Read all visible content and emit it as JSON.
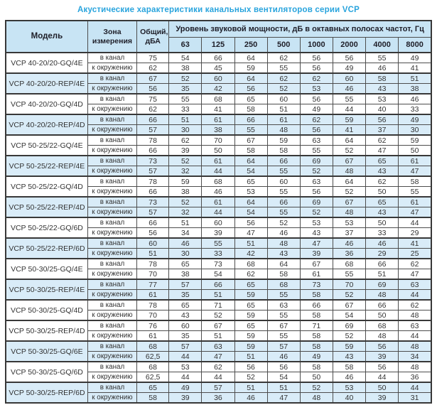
{
  "title": "Акустические характеристики канальных вентиляторов  серии VCP",
  "colors": {
    "title_blue": "#29a4dd",
    "header_bg": "#c8e4f4",
    "highlight_row_bg": "#d9ecf8",
    "border": "#4d4d4d"
  },
  "table": {
    "headers": {
      "model": "Модель",
      "zone": "Зона измерения",
      "total": "Общий, дБА",
      "spl_group": "Уровень звуковой мощности, дБ в октавных полосах частот, Гц",
      "frequencies": [
        "63",
        "125",
        "250",
        "500",
        "1000",
        "2000",
        "4000",
        "8000"
      ]
    },
    "models": [
      {
        "name": "VCP 40-20/20-GQ/4E",
        "highlight": false,
        "rows": [
          {
            "zone": "в канал",
            "total": "75",
            "levels": [
              "54",
              "66",
              "64",
              "62",
              "56",
              "56",
              "55",
              "49"
            ]
          },
          {
            "zone": "к окружению",
            "total": "62",
            "levels": [
              "38",
              "45",
              "59",
              "55",
              "56",
              "49",
              "46",
              "41"
            ]
          }
        ]
      },
      {
        "name": "VCP 40-20/20-REP/4E",
        "highlight": true,
        "rows": [
          {
            "zone": "в канал",
            "total": "67",
            "levels": [
              "52",
              "60",
              "64",
              "62",
              "62",
              "60",
              "58",
              "51"
            ]
          },
          {
            "zone": "к окружению",
            "total": "56",
            "levels": [
              "35",
              "42",
              "56",
              "52",
              "53",
              "46",
              "43",
              "38"
            ]
          }
        ]
      },
      {
        "name": "VCP 40-20/20-GQ/4D",
        "highlight": false,
        "rows": [
          {
            "zone": "в канал",
            "total": "75",
            "levels": [
              "55",
              "68",
              "65",
              "60",
              "56",
              "55",
              "53",
              "46"
            ]
          },
          {
            "zone": "к окружению",
            "total": "62",
            "levels": [
              "33",
              "41",
              "58",
              "51",
              "49",
              "44",
              "40",
              "33"
            ]
          }
        ]
      },
      {
        "name": "VCP 40-20/20-REP/4D",
        "highlight": true,
        "rows": [
          {
            "zone": "в канал",
            "total": "66",
            "levels": [
              "51",
              "61",
              "66",
              "61",
              "62",
              "59",
              "56",
              "49"
            ]
          },
          {
            "zone": "к окружению",
            "total": "57",
            "levels": [
              "30",
              "38",
              "55",
              "48",
              "56",
              "41",
              "37",
              "30"
            ]
          }
        ]
      },
      {
        "name": "VCP 50-25/22-GQ/4E",
        "highlight": false,
        "rows": [
          {
            "zone": "в канал",
            "total": "78",
            "levels": [
              "62",
              "70",
              "67",
              "59",
              "63",
              "64",
              "62",
              "59"
            ]
          },
          {
            "zone": "к окружению",
            "total": "66",
            "levels": [
              "39",
              "50",
              "58",
              "58",
              "55",
              "52",
              "47",
              "50"
            ]
          }
        ]
      },
      {
        "name": "VCP 50-25/22-REP/4E",
        "highlight": true,
        "rows": [
          {
            "zone": "в канал",
            "total": "73",
            "levels": [
              "52",
              "61",
              "64",
              "66",
              "69",
              "67",
              "65",
              "61"
            ]
          },
          {
            "zone": "к окружению",
            "total": "57",
            "levels": [
              "32",
              "44",
              "54",
              "55",
              "52",
              "48",
              "43",
              "47"
            ]
          }
        ]
      },
      {
        "name": "VCP 50-25/22-GQ/4D",
        "highlight": false,
        "rows": [
          {
            "zone": "в канал",
            "total": "78",
            "levels": [
              "59",
              "68",
              "65",
              "60",
              "63",
              "64",
              "62",
              "58"
            ]
          },
          {
            "zone": "к окружению",
            "total": "66",
            "levels": [
              "38",
              "46",
              "53",
              "55",
              "56",
              "52",
              "50",
              "55"
            ]
          }
        ]
      },
      {
        "name": "VCP 50-25/22-REP/4D",
        "highlight": true,
        "rows": [
          {
            "zone": "в канал",
            "total": "73",
            "levels": [
              "52",
              "61",
              "64",
              "66",
              "69",
              "67",
              "65",
              "61"
            ]
          },
          {
            "zone": "к окружению",
            "total": "57",
            "levels": [
              "32",
              "44",
              "54",
              "55",
              "52",
              "48",
              "43",
              "47"
            ]
          }
        ]
      },
      {
        "name": "VCP 50-25/22-GQ/6D",
        "highlight": false,
        "rows": [
          {
            "zone": "в канал",
            "total": "66",
            "levels": [
              "51",
              "60",
              "56",
              "52",
              "53",
              "53",
              "50",
              "44"
            ]
          },
          {
            "zone": "к окружению",
            "total": "56",
            "levels": [
              "34",
              "39",
              "47",
              "46",
              "43",
              "37",
              "33",
              "29"
            ]
          }
        ]
      },
      {
        "name": "VCP 50-25/22-REP/6D",
        "highlight": true,
        "rows": [
          {
            "zone": "в канал",
            "total": "60",
            "levels": [
              "46",
              "55",
              "51",
              "48",
              "47",
              "46",
              "46",
              "41"
            ]
          },
          {
            "zone": "к окружению",
            "total": "51",
            "levels": [
              "30",
              "33",
              "42",
              "43",
              "39",
              "36",
              "29",
              "25"
            ]
          }
        ]
      },
      {
        "name": "VCP 50-30/25-GQ/4E",
        "highlight": false,
        "rows": [
          {
            "zone": "в канал",
            "total": "78",
            "levels": [
              "65",
              "73",
              "68",
              "64",
              "67",
              "68",
              "66",
              "62"
            ]
          },
          {
            "zone": "к окружению",
            "total": "70",
            "levels": [
              "38",
              "54",
              "62",
              "58",
              "61",
              "55",
              "51",
              "47"
            ]
          }
        ]
      },
      {
        "name": "VCP 50-30/25-REP/4E",
        "highlight": true,
        "rows": [
          {
            "zone": "в канал",
            "total": "77",
            "levels": [
              "57",
              "66",
              "65",
              "68",
              "73",
              "70",
              "69",
              "63"
            ]
          },
          {
            "zone": "к окружению",
            "total": "61",
            "levels": [
              "35",
              "51",
              "59",
              "55",
              "58",
              "52",
              "48",
              "44"
            ]
          }
        ]
      },
      {
        "name": "VCP 50-30/25-GQ/4D",
        "highlight": false,
        "rows": [
          {
            "zone": "в канал",
            "total": "78",
            "levels": [
              "65",
              "71",
              "65",
              "63",
              "66",
              "67",
              "66",
              "62"
            ]
          },
          {
            "zone": "к окружению",
            "total": "70",
            "levels": [
              "43",
              "52",
              "59",
              "55",
              "58",
              "54",
              "50",
              "48"
            ]
          }
        ]
      },
      {
        "name": "VCP 50-30/25-REP/4D",
        "highlight": false,
        "rows": [
          {
            "zone": "в канал",
            "total": "76",
            "levels": [
              "60",
              "67",
              "65",
              "67",
              "71",
              "69",
              "68",
              "63"
            ]
          },
          {
            "zone": "к окружению",
            "total": "61",
            "levels": [
              "35",
              "51",
              "59",
              "55",
              "58",
              "52",
              "48",
              "44"
            ]
          }
        ]
      },
      {
        "name": "VCP 50-30/25-GQ/6E",
        "highlight": true,
        "rows": [
          {
            "zone": "в канал",
            "total": "68",
            "levels": [
              "57",
              "63",
              "59",
              "57",
              "58",
              "59",
              "56",
              "48"
            ]
          },
          {
            "zone": "к окружению",
            "total": "62,5",
            "levels": [
              "44",
              "47",
              "51",
              "46",
              "49",
              "43",
              "39",
              "34"
            ]
          }
        ]
      },
      {
        "name": "VCP 50-30/25-GQ/6D",
        "highlight": false,
        "rows": [
          {
            "zone": "в канал",
            "total": "68",
            "levels": [
              "53",
              "62",
              "56",
              "56",
              "58",
              "58",
              "56",
              "48"
            ]
          },
          {
            "zone": "к окружению",
            "total": "62,5",
            "levels": [
              "44",
              "44",
              "52",
              "54",
              "50",
              "46",
              "44",
              "36"
            ]
          }
        ]
      },
      {
        "name": "VCP 50-30/25-REP/6D",
        "highlight": true,
        "rows": [
          {
            "zone": "в канал",
            "total": "65",
            "levels": [
              "49",
              "57",
              "51",
              "51",
              "52",
              "53",
              "50",
              "44"
            ]
          },
          {
            "zone": "к окружению",
            "total": "58",
            "levels": [
              "39",
              "36",
              "46",
              "47",
              "48",
              "40",
              "39",
              "31"
            ]
          }
        ]
      }
    ]
  }
}
